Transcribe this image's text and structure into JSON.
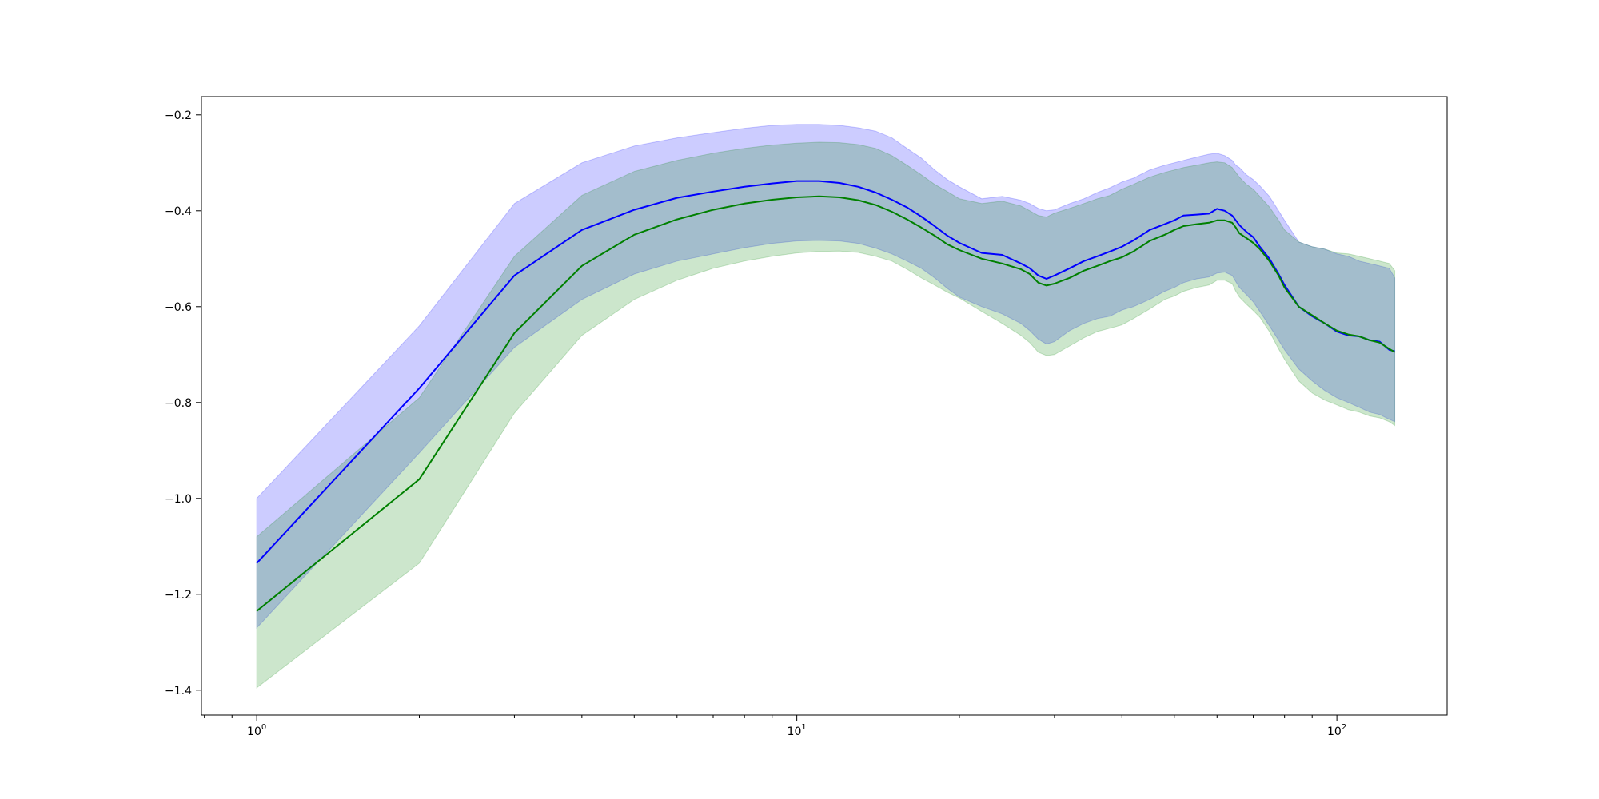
{
  "chart_data": {
    "type": "line",
    "x_scale": "log",
    "xlim": [
      0.79,
      160
    ],
    "ylim": [
      -1.452,
      -0.162
    ],
    "x_ticks": [
      {
        "value": 1,
        "base": "10",
        "exp": "0"
      },
      {
        "value": 10,
        "base": "10",
        "exp": "1"
      },
      {
        "value": 100,
        "base": "10",
        "exp": "2"
      }
    ],
    "y_ticks": [
      {
        "value": -0.2,
        "label": "−0.2"
      },
      {
        "value": -0.4,
        "label": "−0.4"
      },
      {
        "value": -0.6,
        "label": "−0.6"
      },
      {
        "value": -0.8,
        "label": "−0.8"
      },
      {
        "value": -1.0,
        "label": "−1.0"
      },
      {
        "value": -1.2,
        "label": "−1.2"
      },
      {
        "value": -1.4,
        "label": "−1.4"
      }
    ],
    "grid": false,
    "x": [
      1,
      2,
      3,
      4,
      5,
      6,
      7,
      8,
      9,
      10,
      11,
      12,
      13,
      14,
      15,
      16,
      17,
      18,
      19,
      20,
      22,
      24,
      26,
      27,
      28,
      29,
      30,
      32,
      34,
      36,
      38,
      40,
      42,
      45,
      48,
      50,
      52,
      55,
      58,
      60,
      62,
      64,
      65,
      66,
      68,
      70,
      72,
      75,
      78,
      80,
      85,
      90,
      95,
      100,
      105,
      110,
      115,
      120,
      125,
      128
    ],
    "series": [
      {
        "color": "#0000ff",
        "band_color": "#0000ff",
        "band_opacity": 0.2,
        "values": [
          -1.135,
          -0.77,
          -0.535,
          -0.44,
          -0.398,
          -0.373,
          -0.36,
          -0.35,
          -0.343,
          -0.338,
          -0.338,
          -0.342,
          -0.35,
          -0.362,
          -0.377,
          -0.393,
          -0.412,
          -0.432,
          -0.452,
          -0.467,
          -0.488,
          -0.492,
          -0.51,
          -0.52,
          -0.535,
          -0.542,
          -0.535,
          -0.52,
          -0.505,
          -0.495,
          -0.485,
          -0.475,
          -0.462,
          -0.44,
          -0.428,
          -0.42,
          -0.41,
          -0.408,
          -0.406,
          -0.396,
          -0.4,
          -0.41,
          -0.42,
          -0.43,
          -0.444,
          -0.455,
          -0.475,
          -0.5,
          -0.532,
          -0.555,
          -0.6,
          -0.62,
          -0.635,
          -0.652,
          -0.66,
          -0.662,
          -0.67,
          -0.673,
          -0.69,
          -0.693
        ],
        "lower": [
          -1.27,
          -0.905,
          -0.685,
          -0.585,
          -0.532,
          -0.505,
          -0.49,
          -0.477,
          -0.468,
          -0.463,
          -0.462,
          -0.463,
          -0.468,
          -0.478,
          -0.49,
          -0.505,
          -0.52,
          -0.54,
          -0.562,
          -0.58,
          -0.6,
          -0.615,
          -0.635,
          -0.65,
          -0.668,
          -0.678,
          -0.673,
          -0.65,
          -0.635,
          -0.625,
          -0.62,
          -0.607,
          -0.6,
          -0.585,
          -0.568,
          -0.56,
          -0.55,
          -0.542,
          -0.538,
          -0.53,
          -0.528,
          -0.535,
          -0.548,
          -0.56,
          -0.575,
          -0.59,
          -0.61,
          -0.64,
          -0.67,
          -0.69,
          -0.73,
          -0.755,
          -0.775,
          -0.79,
          -0.8,
          -0.81,
          -0.82,
          -0.825,
          -0.835,
          -0.84
        ],
        "upper": [
          -1.0,
          -0.64,
          -0.385,
          -0.3,
          -0.265,
          -0.248,
          -0.237,
          -0.228,
          -0.222,
          -0.22,
          -0.22,
          -0.222,
          -0.227,
          -0.234,
          -0.248,
          -0.27,
          -0.29,
          -0.315,
          -0.335,
          -0.35,
          -0.375,
          -0.37,
          -0.378,
          -0.385,
          -0.395,
          -0.4,
          -0.398,
          -0.385,
          -0.375,
          -0.362,
          -0.352,
          -0.34,
          -0.332,
          -0.315,
          -0.305,
          -0.3,
          -0.295,
          -0.288,
          -0.282,
          -0.28,
          -0.285,
          -0.295,
          -0.305,
          -0.31,
          -0.325,
          -0.335,
          -0.348,
          -0.37,
          -0.4,
          -0.42,
          -0.465,
          -0.475,
          -0.48,
          -0.49,
          -0.495,
          -0.505,
          -0.51,
          -0.515,
          -0.52,
          -0.54
        ]
      },
      {
        "color": "#008000",
        "band_color": "#008000",
        "band_opacity": 0.2,
        "values": [
          -1.235,
          -0.96,
          -0.655,
          -0.515,
          -0.45,
          -0.418,
          -0.398,
          -0.385,
          -0.377,
          -0.372,
          -0.37,
          -0.372,
          -0.378,
          -0.388,
          -0.402,
          -0.418,
          -0.435,
          -0.452,
          -0.47,
          -0.482,
          -0.5,
          -0.51,
          -0.522,
          -0.532,
          -0.55,
          -0.556,
          -0.552,
          -0.54,
          -0.525,
          -0.515,
          -0.505,
          -0.497,
          -0.485,
          -0.463,
          -0.45,
          -0.44,
          -0.432,
          -0.428,
          -0.425,
          -0.42,
          -0.42,
          -0.425,
          -0.435,
          -0.447,
          -0.457,
          -0.467,
          -0.48,
          -0.505,
          -0.535,
          -0.56,
          -0.6,
          -0.618,
          -0.635,
          -0.65,
          -0.658,
          -0.662,
          -0.67,
          -0.675,
          -0.688,
          -0.695
        ],
        "lower": [
          -1.395,
          -1.135,
          -0.822,
          -0.66,
          -0.585,
          -0.545,
          -0.52,
          -0.505,
          -0.495,
          -0.488,
          -0.485,
          -0.484,
          -0.487,
          -0.495,
          -0.505,
          -0.522,
          -0.54,
          -0.555,
          -0.57,
          -0.582,
          -0.61,
          -0.635,
          -0.66,
          -0.675,
          -0.695,
          -0.702,
          -0.7,
          -0.682,
          -0.665,
          -0.652,
          -0.645,
          -0.638,
          -0.625,
          -0.605,
          -0.585,
          -0.578,
          -0.568,
          -0.56,
          -0.555,
          -0.545,
          -0.545,
          -0.552,
          -0.568,
          -0.58,
          -0.595,
          -0.608,
          -0.622,
          -0.652,
          -0.688,
          -0.71,
          -0.755,
          -0.78,
          -0.795,
          -0.805,
          -0.815,
          -0.82,
          -0.828,
          -0.832,
          -0.84,
          -0.848
        ],
        "upper": [
          -1.08,
          -0.79,
          -0.495,
          -0.368,
          -0.318,
          -0.295,
          -0.28,
          -0.27,
          -0.263,
          -0.259,
          -0.257,
          -0.258,
          -0.262,
          -0.27,
          -0.285,
          -0.305,
          -0.325,
          -0.345,
          -0.36,
          -0.375,
          -0.385,
          -0.38,
          -0.39,
          -0.4,
          -0.41,
          -0.413,
          -0.405,
          -0.395,
          -0.385,
          -0.375,
          -0.368,
          -0.355,
          -0.345,
          -0.33,
          -0.32,
          -0.315,
          -0.31,
          -0.305,
          -0.3,
          -0.298,
          -0.3,
          -0.31,
          -0.32,
          -0.33,
          -0.345,
          -0.355,
          -0.37,
          -0.392,
          -0.42,
          -0.44,
          -0.465,
          -0.475,
          -0.48,
          -0.488,
          -0.49,
          -0.495,
          -0.5,
          -0.505,
          -0.51,
          -0.525
        ]
      }
    ]
  }
}
